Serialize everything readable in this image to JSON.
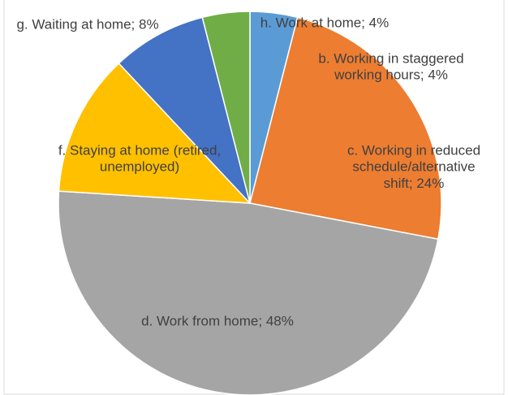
{
  "chart_data": {
    "type": "pie",
    "labels": [
      "b. Working in staggered working hours; 4%",
      "c. Working in reduced schedule/alternative shift; 24%",
      "d. Work from home; 48%",
      "f. Staying at home (retired, unemployed)",
      "g. Waiting at home; 8%",
      "h. Work at home; 4%"
    ],
    "values": [
      4,
      24,
      48,
      12,
      8,
      4
    ],
    "colors": [
      "#5b9bd5",
      "#ed7d31",
      "#a5a5a5",
      "#ffc000",
      "#4472c4",
      "#70ad47"
    ]
  }
}
